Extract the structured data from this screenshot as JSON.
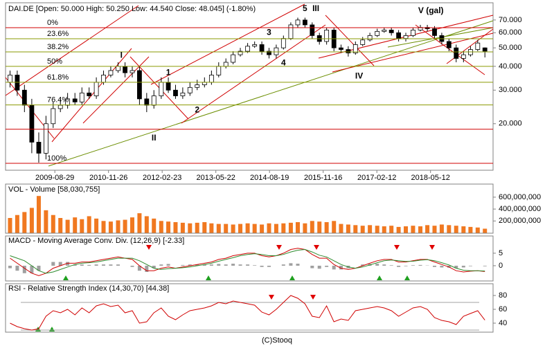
{
  "chart_data": [
    {
      "type": "candlestick",
      "title": "DAI.DE [Open: 50.000  High: 50.250  Low: 44.540  Close: 48.045]  (-1.80%)",
      "x": [
        "2008-08",
        "2008-10",
        "2008-12",
        "2009-02",
        "2009-04",
        "2009-06",
        "2009-08",
        "2009-10",
        "2009-12",
        "2010-02",
        "2010-04",
        "2010-06",
        "2010-08",
        "2010-10",
        "2010-12",
        "2011-02",
        "2011-04",
        "2011-06",
        "2011-08",
        "2011-10",
        "2011-12",
        "2012-02",
        "2012-04",
        "2012-06",
        "2012-08",
        "2012-10",
        "2012-12",
        "2013-02",
        "2013-04",
        "2013-06",
        "2013-08",
        "2013-10",
        "2013-12",
        "2014-02",
        "2014-04",
        "2014-06",
        "2014-08",
        "2014-10",
        "2014-12",
        "2015-02",
        "2015-04",
        "2015-06",
        "2015-08",
        "2015-10",
        "2015-12",
        "2016-02",
        "2016-04",
        "2016-06",
        "2016-08",
        "2016-10",
        "2016-12",
        "2017-02",
        "2017-04",
        "2017-06",
        "2017-08",
        "2017-10",
        "2017-12",
        "2018-02",
        "2018-04",
        "2018-06",
        "2018-08",
        "2018-10",
        "2018-12",
        "2019-02",
        "2019-04",
        "2019-06",
        "2019-08"
      ],
      "open": [
        33,
        36,
        30,
        25,
        16,
        14,
        20,
        24,
        25,
        27,
        26,
        29,
        28,
        33,
        36,
        38,
        40,
        37,
        38,
        27,
        25,
        28,
        33,
        30,
        28,
        29,
        31,
        32,
        33,
        36,
        40,
        42,
        46,
        48,
        51,
        52,
        48,
        46,
        50,
        56,
        66,
        70,
        66,
        58,
        54,
        62,
        50,
        49,
        47,
        52,
        55,
        58,
        61,
        62,
        60,
        56,
        58,
        62,
        64,
        63,
        58,
        54,
        50,
        44,
        46,
        49,
        50
      ],
      "high": [
        38,
        38,
        32,
        27,
        18,
        22,
        26,
        27,
        29,
        29,
        31,
        31,
        35,
        38,
        40,
        42,
        42,
        40,
        40,
        29,
        30,
        35,
        35,
        32,
        31,
        33,
        34,
        35,
        38,
        42,
        44,
        48,
        50,
        53,
        54,
        54,
        50,
        52,
        58,
        68,
        72,
        72,
        68,
        60,
        64,
        64,
        52,
        51,
        54,
        57,
        60,
        63,
        64,
        64,
        62,
        60,
        64,
        66,
        66,
        65,
        60,
        56,
        52,
        48,
        51,
        55,
        50.25
      ],
      "low": [
        31,
        28,
        23,
        14,
        12.5,
        13,
        19,
        23,
        24,
        25,
        25,
        27,
        27,
        32,
        35,
        37,
        35,
        35,
        25,
        23,
        24,
        27,
        29,
        27,
        27,
        28,
        30,
        31,
        32,
        35,
        39,
        41,
        45,
        47,
        50,
        46,
        44,
        44,
        49,
        55,
        64,
        64,
        56,
        52,
        52,
        48,
        47,
        45,
        46,
        51,
        54,
        57,
        60,
        58,
        54,
        54,
        57,
        61,
        61,
        56,
        52,
        48,
        42,
        42,
        45,
        48,
        44.54
      ],
      "close": [
        36,
        30,
        25,
        16,
        14,
        20,
        24,
        25,
        27,
        26,
        29,
        28,
        33,
        36,
        38,
        40,
        37,
        38,
        27,
        25,
        28,
        33,
        30,
        28,
        29,
        31,
        32,
        33,
        36,
        40,
        42,
        46,
        48,
        51,
        52,
        48,
        46,
        50,
        56,
        66,
        70,
        66,
        58,
        54,
        62,
        50,
        49,
        47,
        52,
        55,
        58,
        61,
        62,
        60,
        56,
        58,
        62,
        64,
        63,
        58,
        54,
        50,
        44,
        46,
        49,
        53,
        48.045
      ],
      "up_color": "#ffffff",
      "down_color": "#000000",
      "xlim": [
        "2008-07-08",
        "2019-10-23"
      ],
      "xticks": [
        "2009-08-29",
        "2010-11-26",
        "2012-02-23",
        "2013-05-22",
        "2014-08-19",
        "2015-11-16",
        "2017-02-12",
        "2018-05-12"
      ],
      "log": true,
      "ylim": [
        11.4,
        86.2
      ],
      "yticks": [
        {
          "value": 70,
          "label": "70.000"
        },
        {
          "value": 60,
          "label": "60.000"
        },
        {
          "value": 50,
          "label": "50.000"
        },
        {
          "value": 40,
          "label": "40.000"
        },
        {
          "value": 30,
          "label": "30.000"
        },
        {
          "value": 20,
          "label": "20.000"
        }
      ],
      "levels": [
        {
          "value": 63.8,
          "label": "0%",
          "color": "#d00000"
        },
        {
          "value": 55.8,
          "label": "23.6%",
          "color": "#8a9a00"
        },
        {
          "value": 47.6,
          "label": "38.2%",
          "color": "#8a9a00"
        },
        {
          "value": 40,
          "label": "50%",
          "color": "#8a9a00"
        },
        {
          "value": 33,
          "label": "61.8%",
          "color": "#8a9a00"
        },
        {
          "value": 25.1,
          "label": "76.4%",
          "color": "#8a9a00"
        },
        {
          "value": 18.7,
          "color": "#d00000"
        },
        {
          "value": 12.4,
          "label": "100%",
          "color": "#d00000"
        }
      ],
      "annotations": [
        {
          "text": "1",
          "x": "2012-04",
          "y": 37,
          "color": "#d00000"
        },
        {
          "text": "2",
          "x": "2012-12",
          "y": 23.5,
          "color": "#d00000"
        },
        {
          "text": "3",
          "x": "2014-08",
          "y": 59.9,
          "color": "#d00000"
        },
        {
          "text": "4",
          "x": "2014-12",
          "y": 41.5,
          "color": "#d00000"
        },
        {
          "text": "5",
          "x": "2015-06",
          "y": 80,
          "color": "#d00000"
        },
        {
          "text": "I",
          "x": "2011-03",
          "y": 45.5,
          "color": "#20206a"
        },
        {
          "text": "II",
          "x": "2011-12",
          "y": 16.8,
          "color": "#20206a"
        },
        {
          "text": "III",
          "x": "2015-09",
          "y": 80,
          "color": "#20206a"
        },
        {
          "text": "IV",
          "x": "2016-09",
          "y": 35.5,
          "color": "#20206a"
        },
        {
          "text": "V (gal)",
          "x": "2018-05",
          "y": 78,
          "color": "#6a2090"
        }
      ]
    },
    {
      "type": "bar",
      "title": "VOL - Volume [58,030,755]",
      "values": [
        250000000,
        300000000,
        350000000,
        420000000,
        620000000,
        380000000,
        300000000,
        250000000,
        220000000,
        260000000,
        230000000,
        280000000,
        240000000,
        200000000,
        190000000,
        210000000,
        220000000,
        260000000,
        330000000,
        280000000,
        240000000,
        200000000,
        190000000,
        180000000,
        170000000,
        160000000,
        170000000,
        180000000,
        160000000,
        150000000,
        150000000,
        140000000,
        150000000,
        160000000,
        150000000,
        140000000,
        160000000,
        150000000,
        160000000,
        170000000,
        180000000,
        160000000,
        200000000,
        190000000,
        180000000,
        200000000,
        150000000,
        140000000,
        130000000,
        120000000,
        130000000,
        120000000,
        110000000,
        120000000,
        100000000,
        110000000,
        120000000,
        110000000,
        130000000,
        120000000,
        140000000,
        130000000,
        120000000,
        110000000,
        100000000,
        90000000,
        70000000
      ],
      "color": "#f07820",
      "ylim": [
        0,
        820000000
      ],
      "yticks": [
        {
          "value": 600000000,
          "label": "600,000,000"
        },
        {
          "value": 400000000,
          "label": "400,000,000"
        },
        {
          "value": 200000000,
          "label": "200,000,000"
        }
      ]
    },
    {
      "type": "line",
      "title": "MACD - Moving Average Conv. Div. (12,26,9) [-2.33]",
      "series": [
        {
          "color": "#d00000",
          "values": [
            3,
            1,
            -1,
            -3,
            -4,
            -3,
            -1,
            0,
            1,
            1,
            1.5,
            1.5,
            2,
            2.5,
            3,
            3.5,
            3,
            2.5,
            0,
            -2,
            -2,
            -1,
            -0.5,
            -1,
            -0.5,
            0,
            0.5,
            1,
            1.5,
            2.5,
            3,
            4,
            4.5,
            5,
            5,
            4,
            3.5,
            4,
            5,
            6.5,
            7,
            6.5,
            4.5,
            3,
            3,
            0.5,
            -1,
            -1.5,
            -1,
            0,
            1,
            2,
            2.5,
            2.5,
            1.5,
            1.5,
            2,
            2.5,
            2.5,
            1.5,
            0.5,
            -0.5,
            -2,
            -2.5,
            -2.2,
            -2,
            -2.33
          ]
        },
        {
          "color": "#2e8b2e",
          "values": [
            4,
            3,
            2,
            0,
            -2,
            -3,
            -2.5,
            -1.5,
            -0.5,
            0.5,
            1,
            1.2,
            1.5,
            2,
            2.5,
            3,
            3,
            3,
            2,
            0.5,
            -1,
            -1.5,
            -1.2,
            -1,
            -0.8,
            -0.5,
            0,
            0.5,
            1,
            1.8,
            2.5,
            3.2,
            4,
            4.5,
            4.8,
            4.5,
            4,
            4,
            4.5,
            5.5,
            6.2,
            6.5,
            5.5,
            4.2,
            3.5,
            2,
            0.5,
            -0.5,
            -1,
            -0.5,
            0.3,
            1.2,
            2,
            2.3,
            2,
            1.7,
            1.8,
            2.2,
            2.4,
            2,
            1.2,
            0.3,
            -1,
            -1.8,
            -2,
            -2,
            -2.1
          ]
        }
      ],
      "histogram": {
        "color": "#a0a0a0",
        "values": [
          -1,
          -2,
          -3,
          -3,
          -2,
          0,
          1.5,
          1.5,
          1.5,
          0.5,
          0.5,
          0.3,
          0.5,
          0.5,
          0.5,
          0.5,
          0,
          -0.5,
          -2,
          -2.5,
          -1,
          0.5,
          0.7,
          0,
          0.3,
          0.5,
          0.5,
          0.5,
          0.5,
          0.7,
          0.5,
          0.8,
          0.5,
          0.5,
          0.2,
          -0.5,
          -0.5,
          0,
          0.5,
          1,
          0.8,
          0,
          -1,
          -1.2,
          -0.5,
          -1.5,
          -1.5,
          -1,
          0,
          0.5,
          0.7,
          0.8,
          0.5,
          0.2,
          -0.5,
          -0.2,
          0.2,
          0.3,
          0.1,
          -0.5,
          -0.7,
          -0.8,
          -1,
          -0.7,
          -0.2,
          0,
          -0.23
        ]
      },
      "ylim": [
        -6.1,
        11.9
      ],
      "yticks": [
        5,
        0
      ]
    },
    {
      "type": "line",
      "title": "RSI - Relative Strength Index (14,30,70) [44.38]",
      "series": [
        {
          "color": "#d00000",
          "values": [
            40,
            35,
            32,
            30,
            32,
            50,
            58,
            55,
            60,
            52,
            62,
            55,
            65,
            68,
            64,
            66,
            55,
            58,
            40,
            42,
            55,
            62,
            50,
            45,
            52,
            58,
            60,
            62,
            65,
            70,
            68,
            72,
            70,
            68,
            66,
            56,
            52,
            60,
            70,
            80,
            76,
            68,
            50,
            48,
            65,
            42,
            46,
            44,
            58,
            60,
            62,
            64,
            62,
            58,
            50,
            56,
            62,
            64,
            60,
            48,
            44,
            42,
            38,
            50,
            54,
            58,
            44.38
          ]
        }
      ],
      "levels": [
        70,
        30
      ],
      "ylim": [
        27,
        97
      ],
      "yticks": [
        80,
        60,
        40
      ]
    }
  ],
  "footer": "(C)Stooq"
}
